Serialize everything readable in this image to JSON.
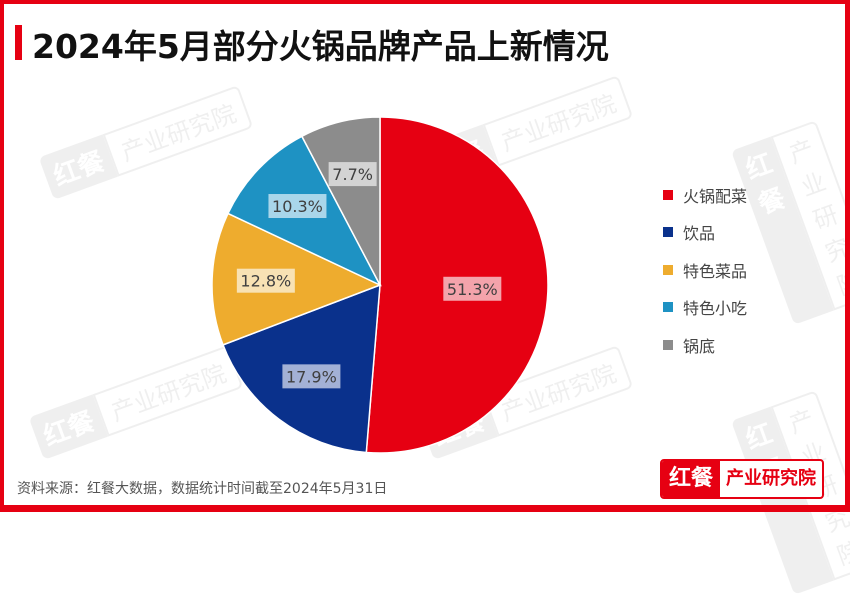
{
  "header": {
    "title": "2024年5月部分火锅品牌产品上新情况"
  },
  "chart_data": {
    "type": "pie",
    "title": "2024年5月部分火锅品牌产品上新情况",
    "categories": [
      "火锅配菜",
      "饮品",
      "特色菜品",
      "特色小吃",
      "锅底"
    ],
    "values": [
      51.3,
      17.9,
      12.8,
      10.3,
      7.7
    ],
    "labels": [
      "51.3%",
      "17.9%",
      "12.8%",
      "10.3%",
      "7.7%"
    ],
    "colors": [
      "#e60012",
      "#0a318c",
      "#eeac2e",
      "#1e92c3",
      "#8c8c8c"
    ],
    "legend_position": "right",
    "start_angle": "12 o'clock, clockwise"
  },
  "legend": {
    "items": [
      {
        "label": "火锅配菜",
        "color": "#e60012"
      },
      {
        "label": "饮品",
        "color": "#0a318c"
      },
      {
        "label": "特色菜品",
        "color": "#eeac2e"
      },
      {
        "label": "特色小吃",
        "color": "#1e92c3"
      },
      {
        "label": "锅底",
        "color": "#8c8c8c"
      }
    ]
  },
  "footer": {
    "source": "资料来源：红餐大数据，数据统计时间截至2024年5月31日",
    "logo_left": "红餐",
    "logo_right": "产业研究院"
  },
  "watermark": {
    "left": "红餐",
    "right": "产业研究院"
  }
}
